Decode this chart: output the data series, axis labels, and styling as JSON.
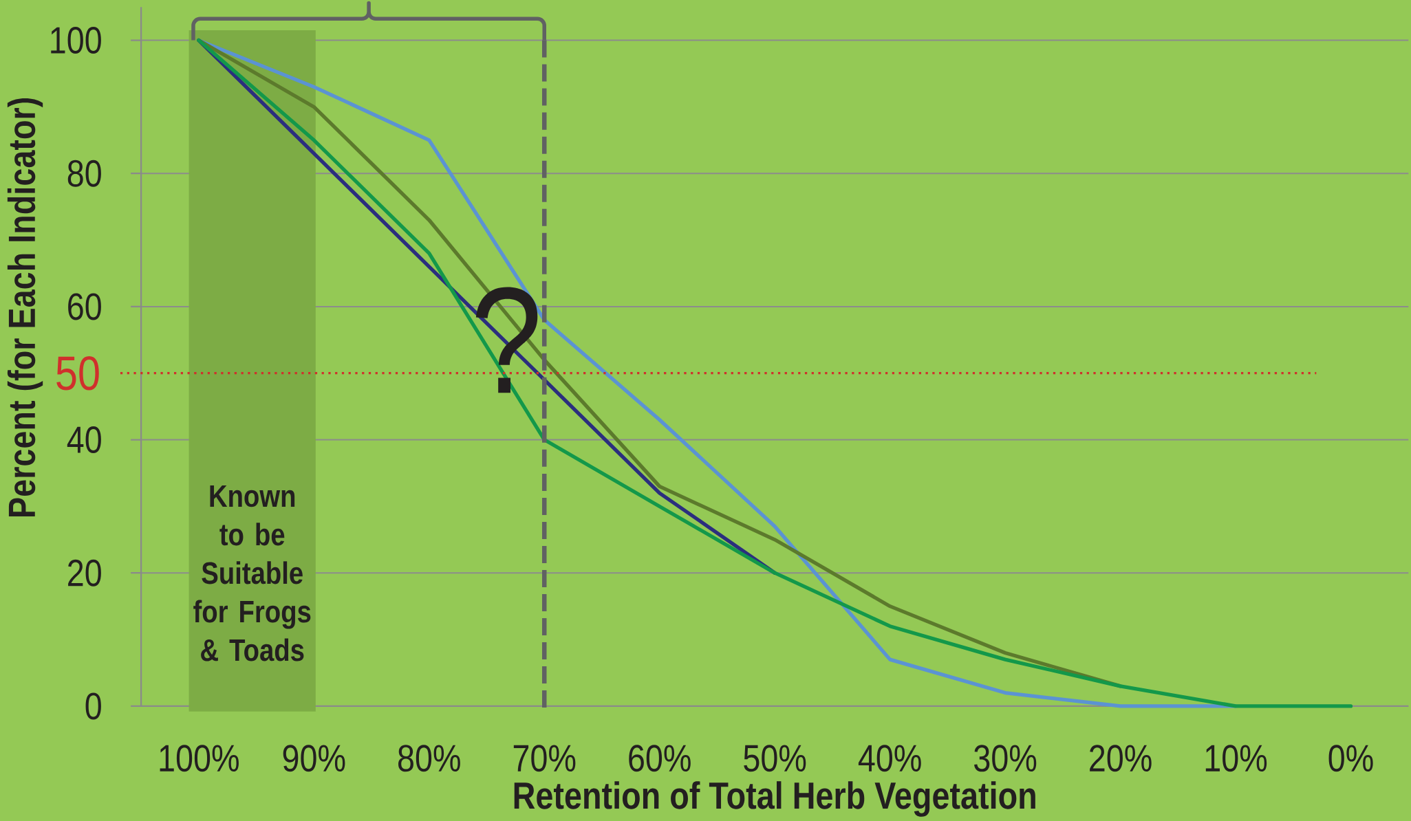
{
  "chart_data": {
    "type": "line",
    "xlabel": "Retention of Total Herb Vegetation",
    "ylabel": "Percent  (for Each Indicator)",
    "categories": [
      "100%",
      "90%",
      "80%",
      "70%",
      "60%",
      "50%",
      "40%",
      "30%",
      "20%",
      "10%",
      "0%"
    ],
    "series": [
      {
        "color": "#5b93d3",
        "values": [
          100,
          93,
          85,
          58,
          43,
          27,
          7,
          2,
          0,
          0,
          null
        ]
      },
      {
        "color": "#5c7a2c",
        "values": [
          100,
          90,
          73,
          52,
          33,
          25,
          15,
          8,
          3,
          null,
          null
        ]
      },
      {
        "color": "#2b2e7e",
        "values": [
          100,
          83,
          66,
          49,
          32,
          20,
          null,
          null,
          null,
          null,
          null
        ]
      },
      {
        "color": "#13984a",
        "values": [
          100,
          85,
          68,
          40,
          30,
          20,
          12,
          7,
          3,
          0,
          0
        ]
      }
    ],
    "ylim": [
      0,
      105
    ],
    "yticks": [
      0,
      20,
      40,
      60,
      80,
      100
    ],
    "grid": "y",
    "ref_lines": [
      {
        "axis": "y",
        "value": 50,
        "label": "50",
        "color": "#d0302c",
        "line_style": "dotted"
      },
      {
        "axis": "x",
        "value": "70%",
        "color": "#606163",
        "line_style": "dashed"
      }
    ],
    "bands": [
      {
        "axis": "x",
        "from": "100%",
        "to": "90%",
        "label": "Known to be Suitable for Frogs & Toads",
        "color": "#7dac45"
      }
    ],
    "annotations": [
      {
        "text": "?",
        "x": "70%",
        "y": 55
      }
    ]
  }
}
